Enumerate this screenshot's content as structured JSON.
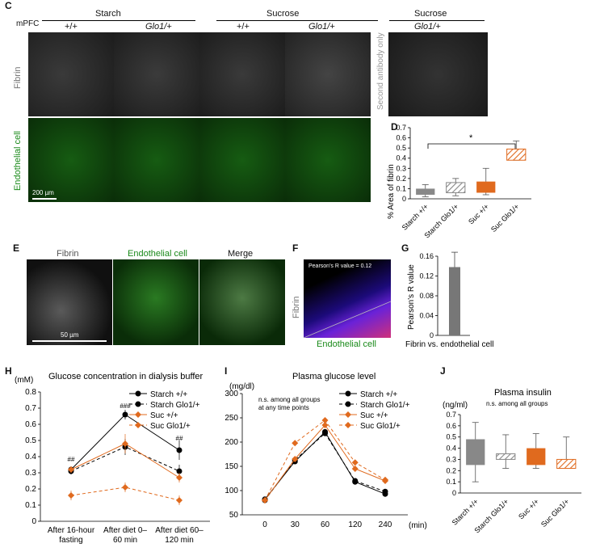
{
  "panelC": {
    "letter": "C",
    "region": "mPFC",
    "groups": [
      "Starch",
      "Sucrose",
      "Sucrose"
    ],
    "genotypes": [
      "+/+",
      "Glo1/+",
      "+/+",
      "Glo1/+",
      "Glo1/+"
    ],
    "row_labels": [
      "Fibrin",
      "Endothelial cell"
    ],
    "control_label": "Second antibody only",
    "scale_bar": "200 µm"
  },
  "panelD": {
    "letter": "D",
    "sig": "*",
    "chart_data": {
      "type": "box",
      "ylabel": "% Area of fibrin",
      "ylim": [
        0,
        0.7
      ],
      "yticks": [
        "0",
        "0.1",
        "0.2",
        "0.3",
        "0.4",
        "0.5",
        "0.6",
        "0.7"
      ],
      "categories": [
        "Starch +/+",
        "Starch Glo1/+",
        "Suc +/+",
        "Suc Glo1/+"
      ],
      "boxes": [
        {
          "min": 0.02,
          "q1": 0.04,
          "q3": 0.1,
          "max": 0.14
        },
        {
          "min": 0.03,
          "q1": 0.06,
          "q3": 0.16,
          "max": 0.2
        },
        {
          "min": 0.04,
          "q1": 0.06,
          "q3": 0.17,
          "max": 0.3
        },
        {
          "min": 0.38,
          "q1": 0.38,
          "q3": 0.49,
          "max": 0.57
        }
      ],
      "colors": [
        "#888888",
        "#888888",
        "#e06a1e",
        "#e06a1e"
      ]
    }
  },
  "panelE": {
    "letter": "E",
    "labels": [
      "Fibrin",
      "Endothelial cell",
      "Merge"
    ],
    "scale_bar": "50 µm"
  },
  "panelF": {
    "letter": "F",
    "title": "Pearson's R value = 0.12",
    "ylabel": "Fibrin",
    "xlabel": "Endothelial cell"
  },
  "panelG": {
    "letter": "G",
    "chart_data": {
      "type": "bar",
      "categories": [
        "Fibrin vs. endothelial cell"
      ],
      "values": [
        0.138
      ],
      "error": [
        0.03
      ],
      "ylabel": "Pearson's R value",
      "ylim": [
        0,
        0.16
      ],
      "yticks": [
        "0",
        "0.04",
        "0.08",
        "0.12",
        "0.16"
      ]
    }
  },
  "panelH": {
    "letter": "H",
    "unit": "(mM)",
    "title": "Glucose concentration in dialysis buffer",
    "annotations": [
      "##",
      "###",
      "##"
    ],
    "chart_data": {
      "type": "line",
      "categories": [
        "After 16-hour fasting",
        "After diet 0–60 min",
        "After diet 60–120 min"
      ],
      "ylim": [
        0,
        0.8
      ],
      "yticks": [
        "0",
        "0.1",
        "0.2",
        "0.3",
        "0.4",
        "0.5",
        "0.6",
        "0.7",
        "0.8"
      ],
      "series": [
        {
          "name": "Starch +/+",
          "values": [
            0.32,
            0.66,
            0.44
          ],
          "error": [
            0.02,
            0.03,
            0.06
          ],
          "color": "#000000",
          "dash": false,
          "marker": "circle"
        },
        {
          "name": "Starch Glo1/+",
          "values": [
            0.31,
            0.46,
            0.31
          ],
          "error": [
            0.02,
            0.05,
            0.04
          ],
          "color": "#000000",
          "dash": true,
          "marker": "circle"
        },
        {
          "name": "Suc +/+",
          "values": [
            0.32,
            0.48,
            0.27
          ],
          "error": [
            0.02,
            0.06,
            0.03
          ],
          "color": "#e06a1e",
          "dash": false,
          "marker": "diamond"
        },
        {
          "name": "Suc Glo1/+",
          "values": [
            0.16,
            0.21,
            0.13
          ],
          "error": [
            0.03,
            0.03,
            0.03
          ],
          "color": "#e06a1e",
          "dash": true,
          "marker": "diamond"
        }
      ]
    }
  },
  "panelI": {
    "letter": "I",
    "unit": "(mg/dl)",
    "title": "Plasma glucose level",
    "note1": "n.s. among all groups",
    "note2": "at any time points",
    "xunit": "(min)",
    "chart_data": {
      "type": "line",
      "categories": [
        "0",
        "30",
        "60",
        "120",
        "240"
      ],
      "ylim": [
        50,
        300
      ],
      "yticks": [
        "50",
        "100",
        "150",
        "200",
        "250",
        "300"
      ],
      "series": [
        {
          "name": "Starch +/+",
          "values": [
            82,
            160,
            221,
            118,
            93
          ],
          "color": "#000000",
          "dash": false,
          "marker": "circle"
        },
        {
          "name": "Starch Glo1/+",
          "values": [
            80,
            163,
            218,
            120,
            98
          ],
          "color": "#000000",
          "dash": true,
          "marker": "circle"
        },
        {
          "name": "Suc +/+",
          "values": [
            80,
            165,
            235,
            145,
            120
          ],
          "color": "#e06a1e",
          "dash": false,
          "marker": "diamond"
        },
        {
          "name": "Suc Glo1/+",
          "values": [
            80,
            198,
            245,
            158,
            122
          ],
          "color": "#e06a1e",
          "dash": true,
          "marker": "diamond"
        }
      ]
    }
  },
  "panelJ": {
    "letter": "J",
    "title": "Plasma insulin",
    "unit": "(ng/ml)",
    "note": "n.s. among all groups",
    "chart_data": {
      "type": "box",
      "ylim": [
        0,
        0.7
      ],
      "yticks": [
        "0",
        "0.1",
        "0.2",
        "0.3",
        "0.4",
        "0.5",
        "0.6",
        "0.7"
      ],
      "categories": [
        "Starch +/+",
        "Starch Glo1/+",
        "Suc +/+",
        "Suc Glo1/+"
      ],
      "boxes": [
        {
          "min": 0.1,
          "q1": 0.25,
          "q3": 0.48,
          "max": 0.63
        },
        {
          "min": 0.22,
          "q1": 0.3,
          "q3": 0.35,
          "max": 0.52
        },
        {
          "min": 0.22,
          "q1": 0.25,
          "q3": 0.4,
          "max": 0.53
        },
        {
          "min": 0.22,
          "q1": 0.22,
          "q3": 0.3,
          "max": 0.5
        }
      ],
      "colors": [
        "#888888",
        "#888888",
        "#e06a1e",
        "#e06a1e"
      ]
    }
  }
}
